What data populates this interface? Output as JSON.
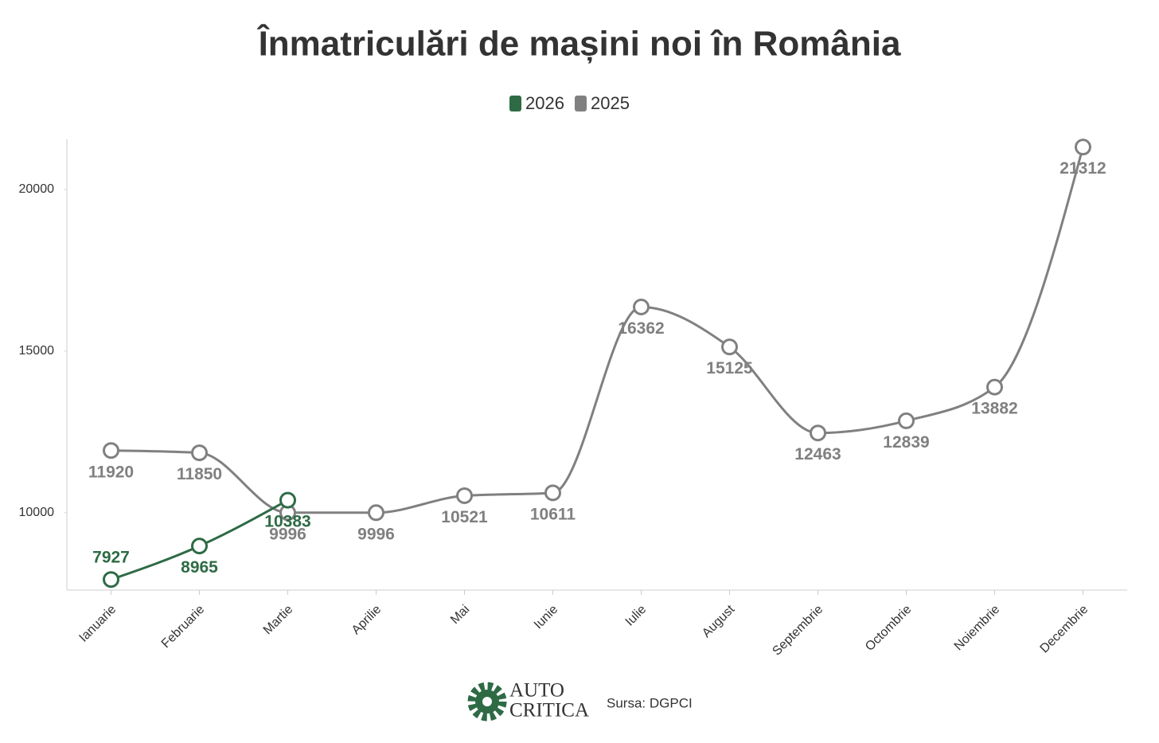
{
  "chart_data": {
    "type": "line",
    "title": "Înmatriculări de mașini noi în România",
    "categories": [
      "Ianuarie",
      "Februarie",
      "Martie",
      "Aprilie",
      "Mai",
      "Iunie",
      "Iulie",
      "August",
      "Septembrie",
      "Octombrie",
      "Noiembrie",
      "Decembrie"
    ],
    "series": [
      {
        "name": "2026",
        "color": "#2e6b45",
        "values": [
          7927,
          8965,
          10383,
          null,
          null,
          null,
          null,
          null,
          null,
          null,
          null,
          null
        ]
      },
      {
        "name": "2025",
        "color": "#808080",
        "values": [
          11920,
          11850,
          9996,
          9996,
          10521,
          10611,
          16362,
          15125,
          12463,
          12839,
          13882,
          21312
        ]
      }
    ],
    "ylim": [
      7600,
      21550
    ],
    "yticks": [
      10000,
      15000,
      20000
    ],
    "grid": false,
    "legend": "top",
    "footer": {
      "logo_top": "AUTO",
      "logo_bottom": "CRITICA",
      "source": "Sursa: DGPCI"
    }
  }
}
